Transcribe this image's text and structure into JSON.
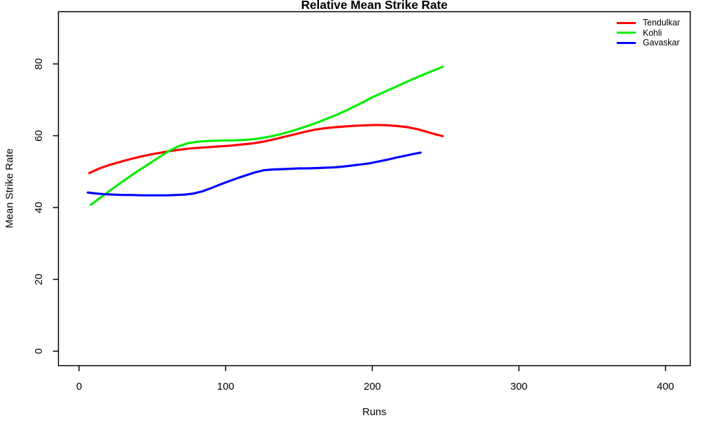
{
  "chart_data": {
    "type": "line",
    "title": "Relative Mean Strike Rate",
    "xlabel": "Runs",
    "ylabel": "Mean Strike Rate",
    "x_ticks": [
      0,
      100,
      200,
      300,
      400
    ],
    "y_ticks": [
      0,
      20,
      40,
      60,
      80
    ],
    "xlim": [
      0,
      417
    ],
    "ylim": [
      0,
      95
    ],
    "grid": false,
    "legend_position": "top-right",
    "axis_color": "#000000",
    "series": [
      {
        "name": "Tendulkar",
        "color": "#FF0000",
        "points": [
          [
            7,
            49.6
          ],
          [
            14,
            50.9
          ],
          [
            21,
            51.9
          ],
          [
            28,
            52.7
          ],
          [
            35,
            53.5
          ],
          [
            42,
            54.2
          ],
          [
            49,
            54.8
          ],
          [
            56,
            55.3
          ],
          [
            63,
            55.8
          ],
          [
            70,
            56.2
          ],
          [
            77,
            56.5
          ],
          [
            84,
            56.7
          ],
          [
            91,
            56.9
          ],
          [
            98,
            57.1
          ],
          [
            105,
            57.3
          ],
          [
            112,
            57.6
          ],
          [
            119,
            57.9
          ],
          [
            126,
            58.4
          ],
          [
            133,
            59.0
          ],
          [
            140,
            59.7
          ],
          [
            147,
            60.4
          ],
          [
            154,
            61.1
          ],
          [
            161,
            61.7
          ],
          [
            168,
            62.1
          ],
          [
            175,
            62.4
          ],
          [
            182,
            62.6
          ],
          [
            189,
            62.8
          ],
          [
            196,
            62.9
          ],
          [
            203,
            63.0
          ],
          [
            210,
            62.9
          ],
          [
            217,
            62.7
          ],
          [
            224,
            62.4
          ],
          [
            231,
            61.8
          ],
          [
            238,
            61.0
          ],
          [
            243,
            60.4
          ],
          [
            248,
            59.9
          ]
        ]
      },
      {
        "name": "Kohli",
        "color": "#00EE00",
        "points": [
          [
            8,
            40.8
          ],
          [
            14,
            42.6
          ],
          [
            20,
            44.4
          ],
          [
            26,
            46.2
          ],
          [
            32,
            47.9
          ],
          [
            38,
            49.6
          ],
          [
            44,
            51.2
          ],
          [
            50,
            52.8
          ],
          [
            56,
            54.4
          ],
          [
            62,
            55.9
          ],
          [
            68,
            57.1
          ],
          [
            74,
            57.9
          ],
          [
            80,
            58.3
          ],
          [
            86,
            58.5
          ],
          [
            92,
            58.6
          ],
          [
            98,
            58.7
          ],
          [
            104,
            58.7
          ],
          [
            110,
            58.8
          ],
          [
            116,
            58.9
          ],
          [
            122,
            59.2
          ],
          [
            128,
            59.6
          ],
          [
            134,
            60.1
          ],
          [
            140,
            60.7
          ],
          [
            146,
            61.4
          ],
          [
            152,
            62.2
          ],
          [
            158,
            63.0
          ],
          [
            164,
            63.9
          ],
          [
            170,
            64.9
          ],
          [
            176,
            65.9
          ],
          [
            182,
            67.0
          ],
          [
            188,
            68.2
          ],
          [
            194,
            69.4
          ],
          [
            200,
            70.7
          ],
          [
            206,
            71.8
          ],
          [
            212,
            72.9
          ],
          [
            218,
            74.0
          ],
          [
            224,
            75.1
          ],
          [
            230,
            76.2
          ],
          [
            236,
            77.2
          ],
          [
            242,
            78.2
          ],
          [
            248,
            79.2
          ]
        ]
      },
      {
        "name": "Gavaskar",
        "color": "#0000FF",
        "points": [
          [
            6,
            44.2
          ],
          [
            12,
            43.9
          ],
          [
            18,
            43.7
          ],
          [
            24,
            43.6
          ],
          [
            30,
            43.5
          ],
          [
            36,
            43.5
          ],
          [
            42,
            43.4
          ],
          [
            48,
            43.4
          ],
          [
            54,
            43.4
          ],
          [
            60,
            43.4
          ],
          [
            66,
            43.5
          ],
          [
            72,
            43.6
          ],
          [
            78,
            43.9
          ],
          [
            84,
            44.5
          ],
          [
            90,
            45.4
          ],
          [
            96,
            46.4
          ],
          [
            102,
            47.3
          ],
          [
            108,
            48.2
          ],
          [
            114,
            49.0
          ],
          [
            120,
            49.8
          ],
          [
            126,
            50.4
          ],
          [
            132,
            50.6
          ],
          [
            138,
            50.7
          ],
          [
            144,
            50.8
          ],
          [
            150,
            50.9
          ],
          [
            156,
            50.9
          ],
          [
            162,
            51.0
          ],
          [
            168,
            51.1
          ],
          [
            174,
            51.2
          ],
          [
            180,
            51.4
          ],
          [
            186,
            51.7
          ],
          [
            192,
            52.0
          ],
          [
            198,
            52.3
          ],
          [
            204,
            52.8
          ],
          [
            210,
            53.3
          ],
          [
            216,
            53.9
          ],
          [
            222,
            54.4
          ],
          [
            228,
            54.9
          ],
          [
            233,
            55.3
          ]
        ]
      }
    ]
  }
}
